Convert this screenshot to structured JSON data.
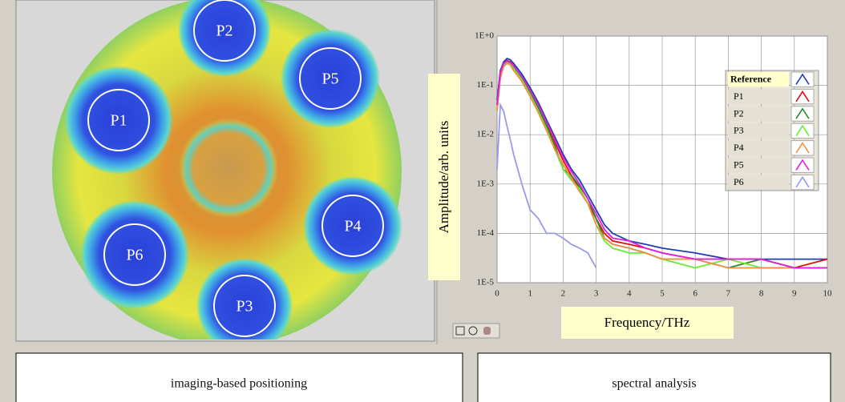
{
  "image": {
    "labels": [
      "P2",
      "P5",
      "P1",
      "P4",
      "P6",
      "P3"
    ]
  },
  "chart_data": {
    "type": "line",
    "ylabel": "Amplitude/arb. units",
    "xlabel": "Frequency/THz",
    "x": [
      0,
      0.1,
      0.2,
      0.3,
      0.4,
      0.5,
      0.75,
      1,
      1.25,
      1.5,
      1.75,
      2,
      2.25,
      2.5,
      2.75,
      3,
      3.25,
      3.5,
      4,
      4.5,
      5,
      6,
      7,
      8,
      9,
      10
    ],
    "series": [
      {
        "name": "Reference",
        "color": "#1f3fb0",
        "values": [
          0.05,
          0.2,
          0.3,
          0.35,
          0.33,
          0.28,
          0.17,
          0.09,
          0.045,
          0.02,
          0.009,
          0.004,
          0.002,
          0.0012,
          0.0006,
          0.0003,
          0.00015,
          0.0001,
          7e-05,
          6e-05,
          5e-05,
          4e-05,
          3e-05,
          3e-05,
          3e-05,
          3e-05
        ]
      },
      {
        "name": "P1",
        "color": "#e01010",
        "values": [
          0.04,
          0.18,
          0.28,
          0.32,
          0.3,
          0.25,
          0.15,
          0.08,
          0.04,
          0.017,
          0.007,
          0.003,
          0.0015,
          0.0008,
          0.0004,
          0.0002,
          0.0001,
          7e-05,
          6e-05,
          5e-05,
          4e-05,
          3e-05,
          3e-05,
          3e-05,
          2e-05,
          3e-05
        ]
      },
      {
        "name": "P2",
        "color": "#2a8a2a",
        "values": [
          0.04,
          0.17,
          0.27,
          0.3,
          0.28,
          0.24,
          0.14,
          0.07,
          0.035,
          0.015,
          0.006,
          0.002,
          0.0015,
          0.0009,
          0.0005,
          0.0002,
          8e-05,
          6e-05,
          5e-05,
          4e-05,
          3e-05,
          3e-05,
          2e-05,
          3e-05,
          2e-05,
          2e-05
        ]
      },
      {
        "name": "P3",
        "color": "#66ee33",
        "values": [
          0.03,
          0.15,
          0.25,
          0.29,
          0.27,
          0.22,
          0.13,
          0.065,
          0.03,
          0.013,
          0.005,
          0.002,
          0.0012,
          0.0008,
          0.0004,
          0.00015,
          7e-05,
          5e-05,
          4e-05,
          4e-05,
          3e-05,
          2e-05,
          3e-05,
          2e-05,
          2e-05,
          2e-05
        ]
      },
      {
        "name": "P4",
        "color": "#f09040",
        "values": [
          0.03,
          0.14,
          0.24,
          0.28,
          0.26,
          0.2,
          0.12,
          0.06,
          0.028,
          0.012,
          0.005,
          0.0025,
          0.0013,
          0.0007,
          0.0004,
          0.00015,
          8e-05,
          6e-05,
          5e-05,
          4e-05,
          3e-05,
          3e-05,
          2e-05,
          2e-05,
          2e-05,
          2e-05
        ]
      },
      {
        "name": "P5",
        "color": "#e020e0",
        "values": [
          0.04,
          0.18,
          0.28,
          0.31,
          0.29,
          0.25,
          0.15,
          0.08,
          0.04,
          0.018,
          0.008,
          0.0035,
          0.0018,
          0.001,
          0.0005,
          0.00025,
          0.00012,
          8e-05,
          7e-05,
          5e-05,
          4e-05,
          3e-05,
          3e-05,
          3e-05,
          2e-05,
          2e-05
        ]
      },
      {
        "name": "P6",
        "color": "#9999ee",
        "values": [
          0.002,
          0.04,
          0.03,
          0.015,
          0.008,
          0.004,
          0.001,
          0.0003,
          0.0002,
          0.0001,
          0.0001,
          8e-05,
          6e-05,
          5e-05,
          4e-05,
          2e-05,
          null,
          null,
          null,
          null,
          null,
          null,
          null,
          null,
          null,
          null
        ]
      }
    ],
    "xlim": [
      0,
      10
    ],
    "xticks": [
      0,
      1,
      2,
      3,
      4,
      5,
      6,
      7,
      8,
      9,
      10
    ],
    "ylim": [
      1e-05,
      1
    ],
    "log_y": true,
    "yticks": [
      {
        "value": 1,
        "label": "1E+0"
      },
      {
        "value": 0.1,
        "label": "1E-1"
      },
      {
        "value": 0.01,
        "label": "1E-2"
      },
      {
        "value": 0.001,
        "label": "1E-3"
      },
      {
        "value": 0.0001,
        "label": "1E-4"
      },
      {
        "value": 1e-05,
        "label": "1E-5"
      }
    ],
    "grid": true,
    "legend": "upper right"
  },
  "captions": [
    "imaging-based positioning",
    "spectral analysis"
  ]
}
